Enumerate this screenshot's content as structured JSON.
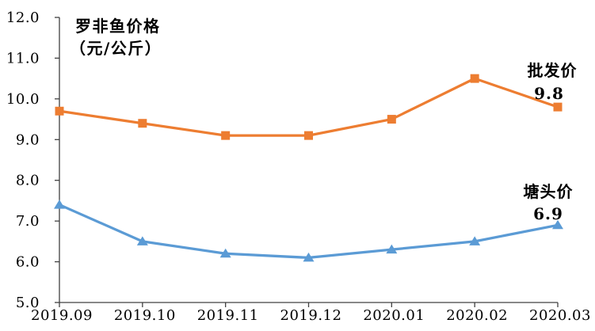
{
  "chart_data": {
    "type": "line",
    "title_line1": "罗非鱼价格",
    "title_line2": "（元/公斤）",
    "categories": [
      "2019.09",
      "2019.10",
      "2019.11",
      "2019.12",
      "2020.01",
      "2020.02",
      "2020.03"
    ],
    "series": [
      {
        "name": "批发价",
        "values": [
          9.7,
          9.4,
          9.1,
          9.1,
          9.5,
          10.5,
          9.8
        ],
        "end_label": "9.8",
        "color": "#ED7D31",
        "marker": "square"
      },
      {
        "name": "塘头价",
        "values": [
          7.4,
          6.5,
          6.2,
          6.1,
          6.3,
          6.5,
          6.9
        ],
        "end_label": "6.9",
        "color": "#5B9BD5",
        "marker": "triangle"
      }
    ],
    "y_ticks": [
      "12.0",
      "11.0",
      "10.0",
      "9.0",
      "8.0",
      "7.0",
      "6.0",
      "5.0"
    ],
    "ylim": [
      5.0,
      12.0
    ],
    "xlabel": "",
    "ylabel": "",
    "grid": false,
    "legend_position": "inline-right-of-line-ends",
    "axis_color": "#404040",
    "text_color": "#000000",
    "background_color": "#ffffff"
  }
}
